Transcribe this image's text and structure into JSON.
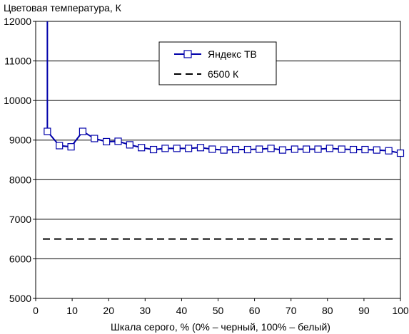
{
  "chart_data": {
    "type": "line",
    "ylabel": "Цветовая температура, К",
    "xlabel": "Шкала серого, % (0% – черный, 100% – белый)",
    "xlim": [
      0,
      100
    ],
    "ylim": [
      5000,
      12000
    ],
    "xticks": [
      0,
      10,
      20,
      30,
      40,
      50,
      60,
      70,
      80,
      90,
      100
    ],
    "yticks": [
      5000,
      6000,
      7000,
      8000,
      9000,
      10000,
      11000,
      12000
    ],
    "grid": "horizontal",
    "legend_position": "top-center",
    "series": [
      {
        "name": "Яндекс ТВ",
        "color": "#0000aa",
        "marker": "open-square",
        "x": [
          3.2,
          6.5,
          9.7,
          12.9,
          16.1,
          19.4,
          22.6,
          25.8,
          29.0,
          32.3,
          35.5,
          38.7,
          41.9,
          45.2,
          48.4,
          51.6,
          54.8,
          58.1,
          61.3,
          64.5,
          67.7,
          71.0,
          74.2,
          77.4,
          80.6,
          83.9,
          87.1,
          90.3,
          93.5,
          96.8,
          100.0
        ],
        "y": [
          9220,
          8860,
          8830,
          9220,
          9040,
          8960,
          8970,
          8880,
          8810,
          8760,
          8790,
          8790,
          8790,
          8810,
          8770,
          8750,
          8760,
          8760,
          8770,
          8790,
          8750,
          8770,
          8770,
          8770,
          8790,
          8770,
          8760,
          8760,
          8750,
          8730,
          8670
        ],
        "spike": {
          "x": 3.2,
          "y_start": 9220,
          "y_end": 12000
        }
      },
      {
        "name": "6500 К",
        "color": "#000000",
        "style": "dashed",
        "x": [
          0,
          100
        ],
        "y": [
          6500,
          6500
        ]
      }
    ]
  }
}
